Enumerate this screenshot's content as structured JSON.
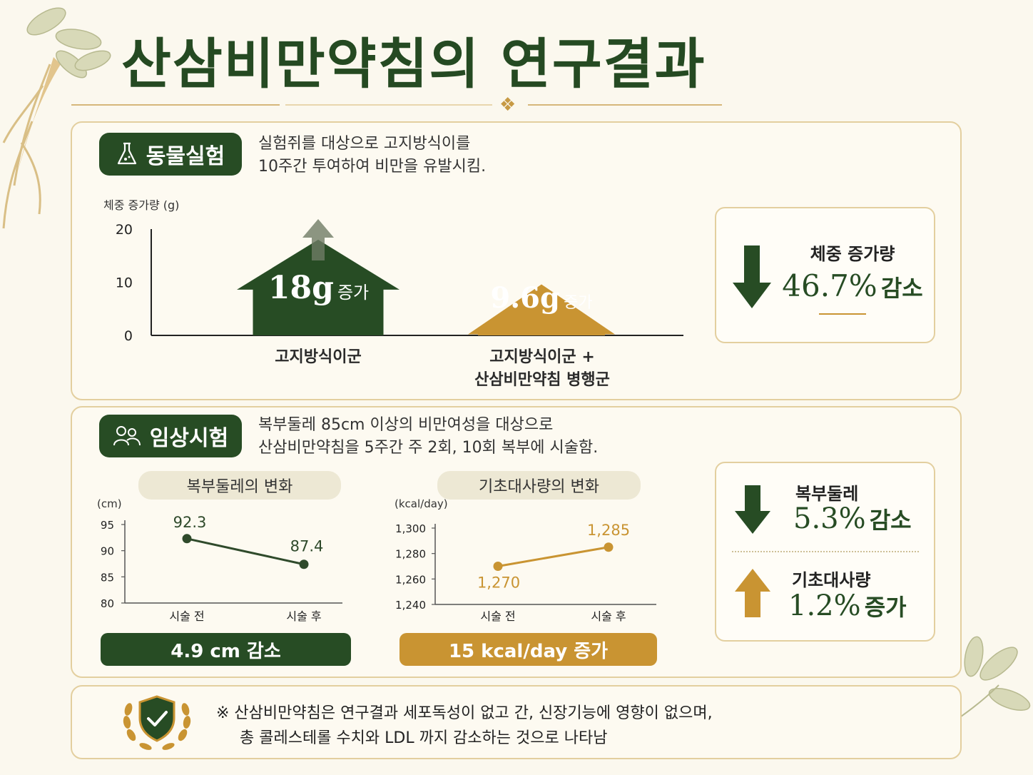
{
  "title": "산삼비만약침의 연구결과",
  "colors": {
    "green": "#274c24",
    "gold": "#c99432",
    "cream": "#fbf8ee",
    "border": "#e3cf9f"
  },
  "animal": {
    "pill": "동물실험",
    "icon": "flask-icon",
    "desc1": "실험쥐를 대상으로 고지방식이를",
    "desc2": "10주간 투여하여 비만을 유발시킴.",
    "ylabel": "체중 증가량 (g)",
    "bar1_value": "18g",
    "bar1_unit": "증가",
    "bar2_value": "9.6g",
    "bar2_unit": "증가",
    "cat1": "고지방식이군",
    "cat2_line1": "고지방식이군 +",
    "cat2_line2": "산삼비만약침 병행군",
    "result_label": "체중 증가량",
    "result_value": "46.7%",
    "result_unit": "감소"
  },
  "clinical": {
    "pill": "임상시험",
    "icon": "people-icon",
    "desc1": "복부둘레 85cm 이상의 비만여성을 대상으로",
    "desc2": "산삼비만약침을 5주간 주 2회, 10회 복부에 시술함.",
    "waist_title": "복부둘레의 변화",
    "waist_unit": "(cm)",
    "waist_result": "4.9 cm 감소",
    "bmr_title": "기초대사량의 변화",
    "bmr_unit": "(kcal/day)",
    "bmr_result": "15 kcal/day 증가",
    "r1_label": "복부둘레",
    "r1_value": "5.3%",
    "r1_unit": "감소",
    "r2_label": "기초대사량",
    "r2_value": "1.2%",
    "r2_unit": "증가"
  },
  "footer": {
    "line1": "※ 산삼비만약침은 연구결과 세포독성이 없고 간,  신장기능에 영향이 없으며,",
    "line2": "총 콜레스테롤 수치와 LDL 까지 감소하는 것으로 나타남",
    "icon": "shield-check-icon"
  },
  "chart_data": [
    {
      "type": "bar",
      "ylabel": "체중 증가량 (g)",
      "categories": [
        "고지방식이군",
        "고지방식이군 + 산삼비만약침 병행군"
      ],
      "values": [
        18,
        9.6
      ],
      "yticks": [
        0,
        10,
        20
      ],
      "ylim": [
        0,
        20
      ]
    },
    {
      "type": "line",
      "title": "복부둘레의 변화",
      "ylabel": "(cm)",
      "categories": [
        "시술 전",
        "시술 후"
      ],
      "values": [
        92.3,
        87.4
      ],
      "value_labels": [
        "92.3",
        "87.4"
      ],
      "yticks": [
        80,
        85,
        90,
        95
      ],
      "ylim": [
        80,
        95
      ]
    },
    {
      "type": "line",
      "title": "기초대사량의 변화",
      "ylabel": "(kcal/day)",
      "categories": [
        "시술 전",
        "시술 후"
      ],
      "values": [
        1270,
        1285
      ],
      "value_labels": [
        "1,270",
        "1,285"
      ],
      "yticks": [
        1240,
        1260,
        1280,
        1300
      ],
      "ytick_labels": [
        "1,240",
        "1,260",
        "1,280",
        "1,300"
      ],
      "ylim": [
        1240,
        1300
      ]
    }
  ]
}
